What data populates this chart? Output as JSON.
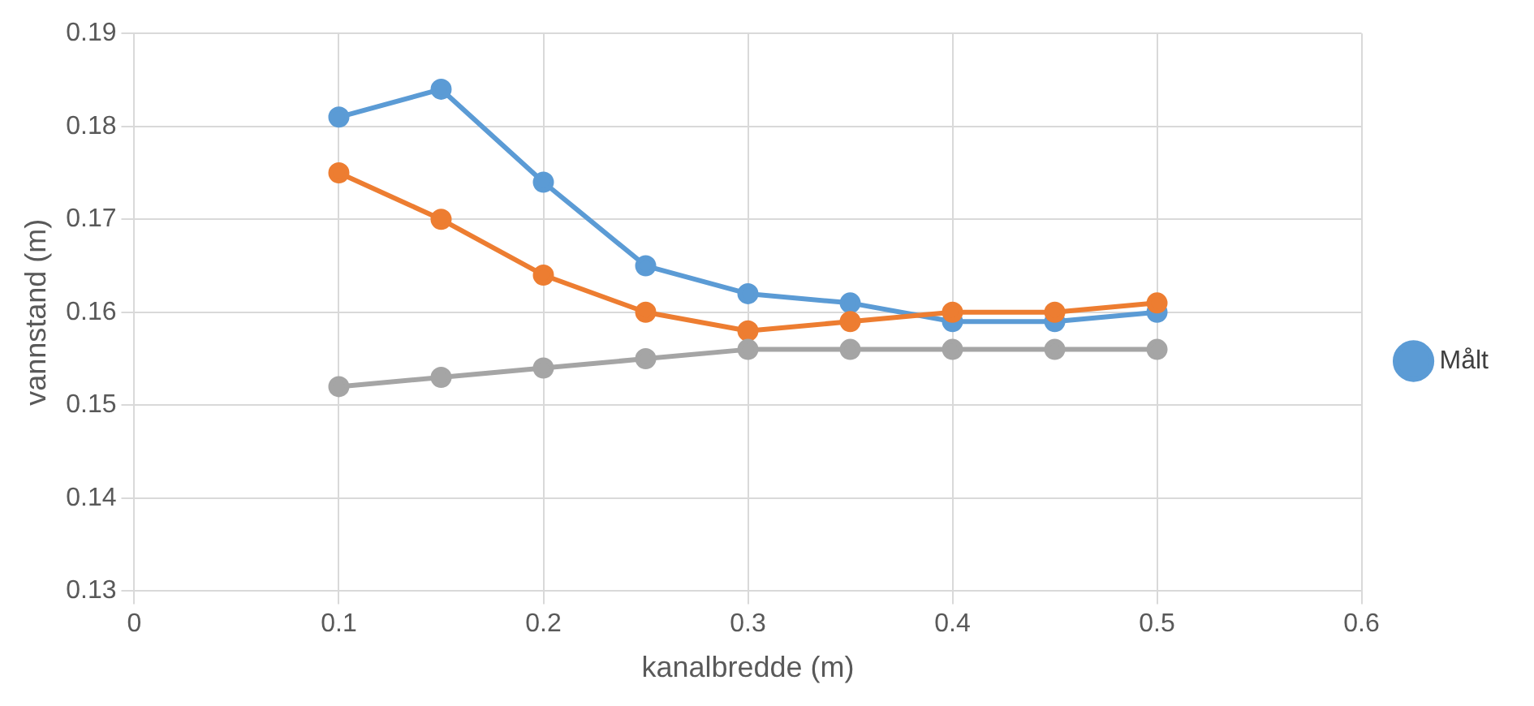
{
  "chart_data": {
    "type": "line",
    "xlabel": "kanalbredde (m)",
    "ylabel": "vannstand (m)",
    "x": [
      0.1,
      0.15,
      0.2,
      0.25,
      0.3,
      0.35,
      0.4,
      0.45,
      0.5
    ],
    "series": [
      {
        "name": "Målt",
        "color": "#5b9bd5",
        "values": [
          0.181,
          0.184,
          0.174,
          0.165,
          0.162,
          0.161,
          0.159,
          0.159,
          0.16
        ]
      },
      {
        "color": "#ed7d31",
        "values": [
          0.175,
          0.17,
          0.164,
          0.16,
          0.158,
          0.159,
          0.16,
          0.16,
          0.161
        ]
      },
      {
        "color": "#a5a5a5",
        "values": [
          0.152,
          0.153,
          0.154,
          0.155,
          0.156,
          0.156,
          0.156,
          0.156,
          0.156
        ]
      }
    ],
    "xlim": [
      0,
      0.6
    ],
    "xticks": [
      0,
      0.1,
      0.2,
      0.3,
      0.4,
      0.5,
      0.6
    ],
    "ylim": [
      0.13,
      0.19
    ],
    "yticks": [
      0.13,
      0.14,
      0.15,
      0.16,
      0.17,
      0.18,
      0.19
    ],
    "grid": true,
    "legend": "right",
    "marker": "circle",
    "line_style": "solid"
  }
}
